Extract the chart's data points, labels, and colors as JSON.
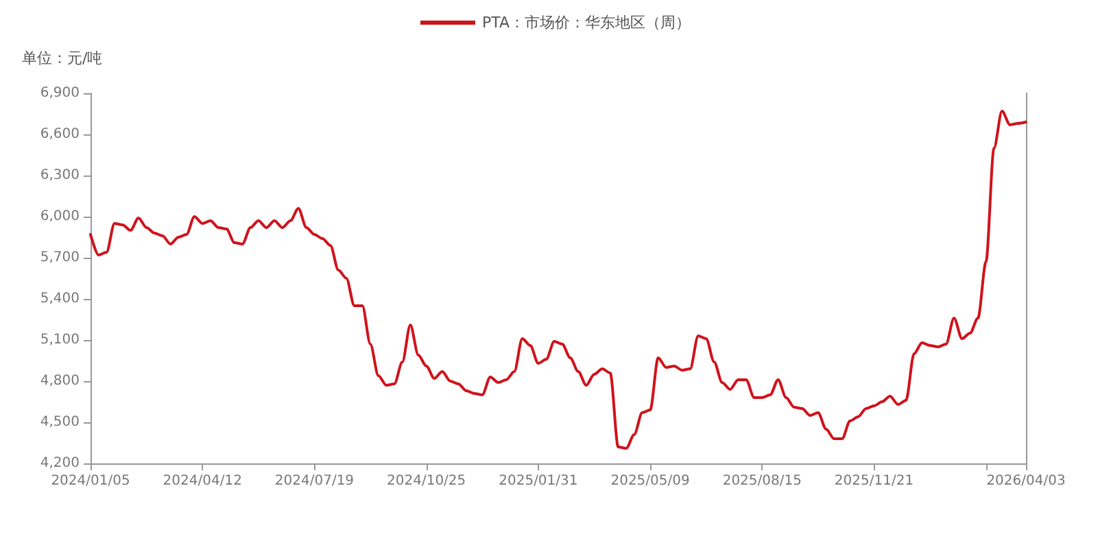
{
  "chart_data": {
    "type": "line",
    "ylabel": "单位：元/吨",
    "x": [
      "2024-01-05",
      "2024-01-12",
      "2024-01-19",
      "2024-01-26",
      "2024-02-02",
      "2024-02-09",
      "2024-02-16",
      "2024-02-23",
      "2024-03-01",
      "2024-03-08",
      "2024-03-15",
      "2024-03-22",
      "2024-03-29",
      "2024-04-05",
      "2024-04-12",
      "2024-04-19",
      "2024-04-26",
      "2024-05-03",
      "2024-05-10",
      "2024-05-17",
      "2024-05-24",
      "2024-05-31",
      "2024-06-07",
      "2024-06-14",
      "2024-06-21",
      "2024-06-28",
      "2024-07-05",
      "2024-07-12",
      "2024-07-19",
      "2024-07-26",
      "2024-08-02",
      "2024-08-09",
      "2024-08-16",
      "2024-08-23",
      "2024-08-30",
      "2024-09-06",
      "2024-09-13",
      "2024-09-20",
      "2024-09-27",
      "2024-10-04",
      "2024-10-11",
      "2024-10-18",
      "2024-10-25",
      "2024-11-01",
      "2024-11-08",
      "2024-11-15",
      "2024-11-22",
      "2024-11-29",
      "2024-12-06",
      "2024-12-13",
      "2024-12-20",
      "2024-12-27",
      "2025-01-03",
      "2025-01-10",
      "2025-01-17",
      "2025-01-24",
      "2025-01-31",
      "2025-02-07",
      "2025-02-14",
      "2025-02-21",
      "2025-02-28",
      "2025-03-07",
      "2025-03-14",
      "2025-03-21",
      "2025-03-28",
      "2025-04-04",
      "2025-04-11",
      "2025-04-18",
      "2025-04-25",
      "2025-05-02",
      "2025-05-09",
      "2025-05-16",
      "2025-05-23",
      "2025-05-30",
      "2025-06-06",
      "2025-06-13",
      "2025-06-20",
      "2025-06-27",
      "2025-07-04",
      "2025-07-11",
      "2025-07-18",
      "2025-07-25",
      "2025-08-01",
      "2025-08-08",
      "2025-08-15",
      "2025-08-22",
      "2025-08-29",
      "2025-09-05",
      "2025-09-12",
      "2025-09-19",
      "2025-09-26",
      "2025-10-03",
      "2025-10-10",
      "2025-10-17",
      "2025-10-24",
      "2025-10-31",
      "2025-11-07",
      "2025-11-14",
      "2025-11-21",
      "2025-11-28",
      "2025-12-05",
      "2025-12-12",
      "2025-12-19",
      "2025-12-26",
      "2026-01-02",
      "2026-01-09",
      "2026-01-16",
      "2026-01-23",
      "2026-01-30",
      "2026-02-06",
      "2026-02-13",
      "2026-02-20",
      "2026-02-27",
      "2026-03-06",
      "2026-03-13",
      "2026-03-20",
      "2026-03-27",
      "2026-04-03"
    ],
    "series": [
      {
        "name": "PTA：市场价：华东地区（周）",
        "color": "#d0121b",
        "values": [
          5870,
          5720,
          5740,
          5950,
          5940,
          5900,
          5990,
          5920,
          5880,
          5860,
          5800,
          5850,
          5870,
          6000,
          5950,
          5970,
          5920,
          5910,
          5810,
          5800,
          5920,
          5970,
          5920,
          5970,
          5920,
          5970,
          6060,
          5920,
          5870,
          5840,
          5790,
          5610,
          5550,
          5350,
          5350,
          5070,
          4840,
          4770,
          4780,
          4940,
          5210,
          4990,
          4910,
          4820,
          4870,
          4800,
          4780,
          4730,
          4710,
          4700,
          4830,
          4790,
          4810,
          4870,
          5110,
          5060,
          4930,
          4960,
          5090,
          5070,
          4970,
          4870,
          4770,
          4850,
          4890,
          4860,
          4320,
          4310,
          4410,
          4570,
          4590,
          4970,
          4900,
          4910,
          4880,
          4890,
          5130,
          5110,
          4940,
          4790,
          4740,
          4810,
          4810,
          4680,
          4680,
          4700,
          4810,
          4680,
          4610,
          4600,
          4550,
          4570,
          4450,
          4380,
          4380,
          4510,
          4540,
          4600,
          4620,
          4650,
          4690,
          4630,
          4660,
          5000,
          5080,
          5060,
          5050,
          5070,
          5260,
          5110,
          5150,
          5260,
          5670,
          6500,
          6770,
          6670,
          6680,
          6690
        ]
      }
    ],
    "xlim": [
      "2024-01-05",
      "2026-04-03"
    ],
    "xticks": [
      {
        "value": "2024-01-05",
        "label": "2024/01/05"
      },
      {
        "value": "2024-04-12",
        "label": "2024/04/12"
      },
      {
        "value": "2024-07-19",
        "label": "2024/07/19"
      },
      {
        "value": "2024-10-25",
        "label": "2024/10/25"
      },
      {
        "value": "2025-01-31",
        "label": "2025/01/31"
      },
      {
        "value": "2025-05-09",
        "label": "2025/05/09"
      },
      {
        "value": "2025-08-15",
        "label": "2025/08/15"
      },
      {
        "value": "2025-11-21",
        "label": "2025/11/21"
      },
      {
        "value": "2026-02-27",
        "label": null
      },
      {
        "value": "2026-04-03",
        "label": "2026/04/03"
      }
    ],
    "ylim": [
      4200,
      6900
    ],
    "yticks": [
      {
        "value": 4200,
        "label": "4,200"
      },
      {
        "value": 4500,
        "label": "4,500"
      },
      {
        "value": 4800,
        "label": "4,800"
      },
      {
        "value": 5100,
        "label": "5,100"
      },
      {
        "value": 5400,
        "label": "5,400"
      },
      {
        "value": 5700,
        "label": "5,700"
      },
      {
        "value": 6000,
        "label": "6,000"
      },
      {
        "value": 6300,
        "label": "6,300"
      },
      {
        "value": 6600,
        "label": "6,600"
      },
      {
        "value": 6900,
        "label": "6,900"
      }
    ],
    "legend": "top",
    "marker": "none",
    "line_style": "solid"
  }
}
